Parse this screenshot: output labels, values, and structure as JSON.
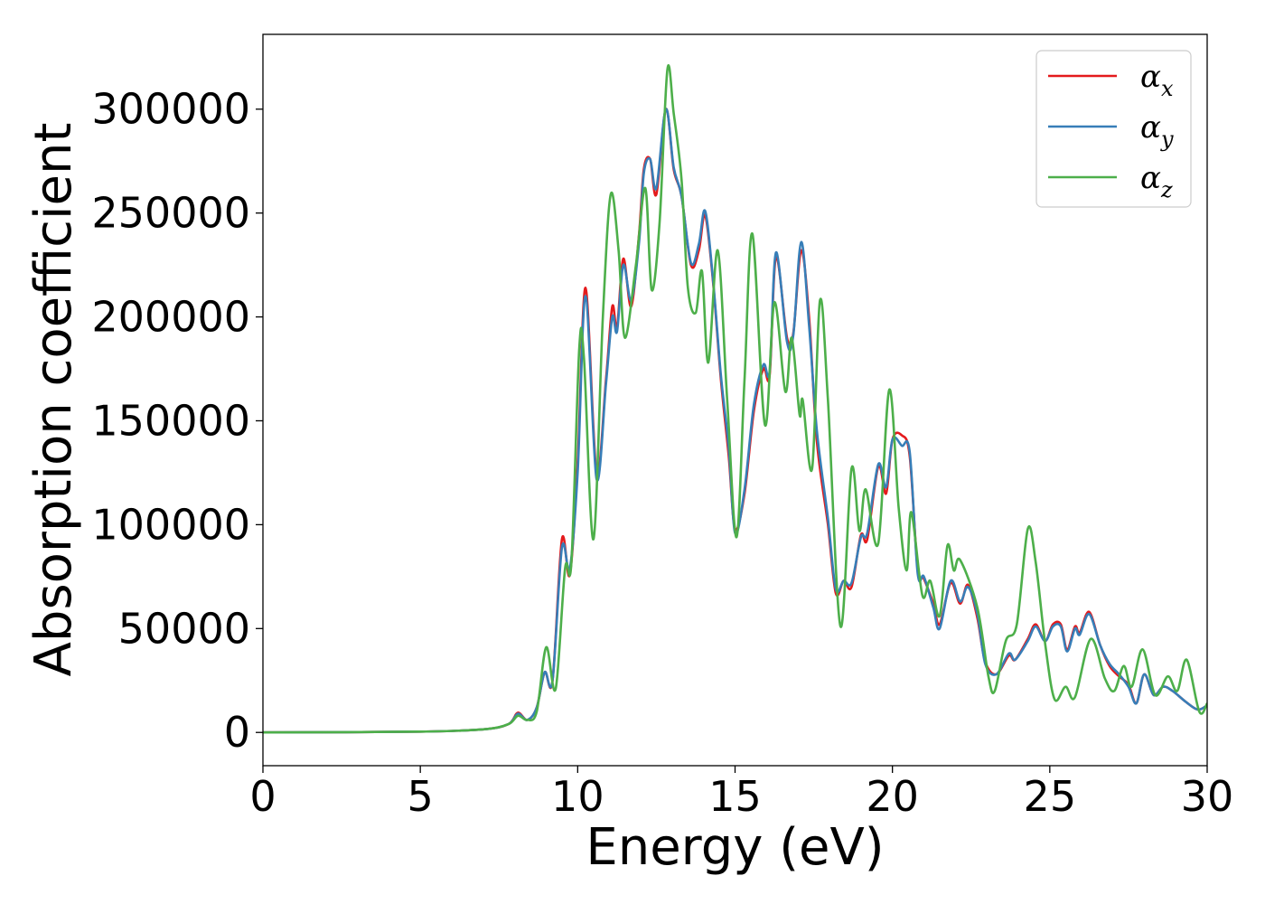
{
  "chart_data": {
    "type": "line",
    "xlabel": "Energy (eV)",
    "ylabel": "Absorption coefficient",
    "xlim": [
      0,
      30
    ],
    "ylim": [
      -16000,
      336000
    ],
    "xticks": [
      0,
      5,
      10,
      15,
      20,
      25,
      30
    ],
    "yticks": [
      0,
      50000,
      100000,
      150000,
      200000,
      250000,
      300000
    ],
    "grid": false,
    "legend_position": "top-right",
    "series": [
      {
        "name": "αx",
        "label_base": "α",
        "label_sub": "x",
        "color": "#e41a1c",
        "points": [
          [
            0,
            0
          ],
          [
            5,
            400
          ],
          [
            7,
            1500
          ],
          [
            7.8,
            4000
          ],
          [
            8.1,
            9500
          ],
          [
            8.4,
            6000
          ],
          [
            8.7,
            12000
          ],
          [
            8.95,
            29000
          ],
          [
            9.2,
            25000
          ],
          [
            9.5,
            93000
          ],
          [
            9.75,
            76000
          ],
          [
            10.0,
            130000
          ],
          [
            10.25,
            214000
          ],
          [
            10.6,
            125000
          ],
          [
            10.9,
            170000
          ],
          [
            11.1,
            205000
          ],
          [
            11.25,
            195000
          ],
          [
            11.45,
            228000
          ],
          [
            11.7,
            205000
          ],
          [
            11.95,
            240000
          ],
          [
            12.1,
            271000
          ],
          [
            12.3,
            276000
          ],
          [
            12.5,
            259000
          ],
          [
            12.8,
            300000
          ],
          [
            13.05,
            271000
          ],
          [
            13.3,
            258000
          ],
          [
            13.6,
            225000
          ],
          [
            13.85,
            232000
          ],
          [
            14.05,
            249000
          ],
          [
            14.3,
            217000
          ],
          [
            14.55,
            170000
          ],
          [
            14.8,
            133000
          ],
          [
            15.0,
            98000
          ],
          [
            15.3,
            115000
          ],
          [
            15.6,
            155000
          ],
          [
            15.9,
            175000
          ],
          [
            16.1,
            172000
          ],
          [
            16.3,
            229000
          ],
          [
            16.65,
            190000
          ],
          [
            16.85,
            192000
          ],
          [
            17.1,
            232000
          ],
          [
            17.35,
            200000
          ],
          [
            17.6,
            140000
          ],
          [
            17.95,
            100000
          ],
          [
            18.2,
            67000
          ],
          [
            18.45,
            73000
          ],
          [
            18.7,
            70000
          ],
          [
            19.0,
            95000
          ],
          [
            19.2,
            93000
          ],
          [
            19.55,
            128000
          ],
          [
            19.8,
            115000
          ],
          [
            20.0,
            141000
          ],
          [
            20.3,
            143000
          ],
          [
            20.55,
            133000
          ],
          [
            20.8,
            79000
          ],
          [
            21.0,
            74000
          ],
          [
            21.3,
            62000
          ],
          [
            21.5,
            52000
          ],
          [
            21.85,
            72000
          ],
          [
            22.15,
            62000
          ],
          [
            22.4,
            71000
          ],
          [
            22.7,
            55000
          ],
          [
            22.95,
            34000
          ],
          [
            23.3,
            28000
          ],
          [
            23.7,
            37000
          ],
          [
            23.9,
            35000
          ],
          [
            24.3,
            45000
          ],
          [
            24.55,
            52000
          ],
          [
            24.85,
            44000
          ],
          [
            25.1,
            52000
          ],
          [
            25.35,
            52000
          ],
          [
            25.55,
            40000
          ],
          [
            25.8,
            51000
          ],
          [
            25.95,
            48000
          ],
          [
            26.25,
            58000
          ],
          [
            26.6,
            42000
          ],
          [
            26.9,
            32000
          ],
          [
            27.2,
            27000
          ],
          [
            27.5,
            23000
          ],
          [
            27.75,
            14000
          ],
          [
            28.0,
            28000
          ],
          [
            28.3,
            18000
          ],
          [
            28.6,
            22000
          ],
          [
            28.9,
            20000
          ],
          [
            29.3,
            15000
          ],
          [
            29.7,
            11000
          ],
          [
            30,
            13000
          ]
        ]
      },
      {
        "name": "αy",
        "label_base": "α",
        "label_sub": "y",
        "color": "#377eb8",
        "points": [
          [
            0,
            0
          ],
          [
            5,
            400
          ],
          [
            7,
            1500
          ],
          [
            7.8,
            4000
          ],
          [
            8.1,
            9000
          ],
          [
            8.4,
            6000
          ],
          [
            8.7,
            12000
          ],
          [
            8.95,
            29000
          ],
          [
            9.2,
            25000
          ],
          [
            9.5,
            89000
          ],
          [
            9.75,
            79000
          ],
          [
            10.0,
            125000
          ],
          [
            10.25,
            210000
          ],
          [
            10.6,
            122000
          ],
          [
            10.9,
            168000
          ],
          [
            11.1,
            200000
          ],
          [
            11.25,
            193000
          ],
          [
            11.45,
            225000
          ],
          [
            11.7,
            208000
          ],
          [
            11.95,
            236000
          ],
          [
            12.1,
            269000
          ],
          [
            12.3,
            276000
          ],
          [
            12.5,
            262000
          ],
          [
            12.8,
            300000
          ],
          [
            13.05,
            272000
          ],
          [
            13.3,
            258000
          ],
          [
            13.6,
            226000
          ],
          [
            13.85,
            235000
          ],
          [
            14.05,
            251000
          ],
          [
            14.3,
            218000
          ],
          [
            14.55,
            172000
          ],
          [
            14.8,
            137000
          ],
          [
            15.0,
            96000
          ],
          [
            15.3,
            117000
          ],
          [
            15.6,
            158000
          ],
          [
            15.9,
            177000
          ],
          [
            16.1,
            174000
          ],
          [
            16.3,
            231000
          ],
          [
            16.65,
            188000
          ],
          [
            16.85,
            191000
          ],
          [
            17.1,
            236000
          ],
          [
            17.35,
            196000
          ],
          [
            17.6,
            145000
          ],
          [
            17.95,
            103000
          ],
          [
            18.2,
            69000
          ],
          [
            18.45,
            73000
          ],
          [
            18.7,
            72000
          ],
          [
            19.0,
            94000
          ],
          [
            19.2,
            96000
          ],
          [
            19.55,
            129000
          ],
          [
            19.8,
            118000
          ],
          [
            20.0,
            141000
          ],
          [
            20.3,
            138000
          ],
          [
            20.55,
            135000
          ],
          [
            20.8,
            77000
          ],
          [
            21.0,
            75000
          ],
          [
            21.3,
            60000
          ],
          [
            21.5,
            50000
          ],
          [
            21.85,
            73000
          ],
          [
            22.15,
            63000
          ],
          [
            22.4,
            70000
          ],
          [
            22.7,
            57000
          ],
          [
            22.95,
            33000
          ],
          [
            23.3,
            28000
          ],
          [
            23.7,
            38000
          ],
          [
            23.9,
            35000
          ],
          [
            24.3,
            44000
          ],
          [
            24.55,
            51000
          ],
          [
            24.85,
            44000
          ],
          [
            25.1,
            51000
          ],
          [
            25.35,
            51000
          ],
          [
            25.55,
            39000
          ],
          [
            25.8,
            50000
          ],
          [
            25.95,
            47000
          ],
          [
            26.25,
            57000
          ],
          [
            26.6,
            42000
          ],
          [
            26.9,
            33000
          ],
          [
            27.2,
            28000
          ],
          [
            27.5,
            22000
          ],
          [
            27.75,
            14000
          ],
          [
            28.0,
            28000
          ],
          [
            28.3,
            18000
          ],
          [
            28.6,
            22000
          ],
          [
            28.9,
            20000
          ],
          [
            29.3,
            15000
          ],
          [
            29.7,
            11000
          ],
          [
            30,
            13000
          ]
        ]
      },
      {
        "name": "αz",
        "label_base": "α",
        "label_sub": "z",
        "color": "#4daf4a",
        "points": [
          [
            0,
            0
          ],
          [
            5,
            400
          ],
          [
            7,
            1500
          ],
          [
            7.8,
            4000
          ],
          [
            8.1,
            8000
          ],
          [
            8.4,
            6000
          ],
          [
            8.7,
            10000
          ],
          [
            9.0,
            41000
          ],
          [
            9.3,
            21000
          ],
          [
            9.6,
            79000
          ],
          [
            9.8,
            82000
          ],
          [
            10.05,
            185000
          ],
          [
            10.2,
            180000
          ],
          [
            10.5,
            93000
          ],
          [
            10.8,
            200000
          ],
          [
            11.05,
            259000
          ],
          [
            11.3,
            232000
          ],
          [
            11.5,
            190000
          ],
          [
            11.85,
            225000
          ],
          [
            12.15,
            262000
          ],
          [
            12.35,
            213000
          ],
          [
            12.6,
            245000
          ],
          [
            12.85,
            319000
          ],
          [
            13.05,
            298000
          ],
          [
            13.3,
            266000
          ],
          [
            13.5,
            214000
          ],
          [
            13.75,
            202000
          ],
          [
            13.95,
            222000
          ],
          [
            14.15,
            178000
          ],
          [
            14.45,
            232000
          ],
          [
            14.75,
            160000
          ],
          [
            15.05,
            94000
          ],
          [
            15.3,
            170000
          ],
          [
            15.55,
            240000
          ],
          [
            15.95,
            148000
          ],
          [
            16.25,
            207000
          ],
          [
            16.6,
            164000
          ],
          [
            16.8,
            190000
          ],
          [
            17.05,
            153000
          ],
          [
            17.15,
            160000
          ],
          [
            17.45,
            127000
          ],
          [
            17.7,
            208000
          ],
          [
            17.95,
            160000
          ],
          [
            18.35,
            51000
          ],
          [
            18.7,
            127000
          ],
          [
            18.95,
            97000
          ],
          [
            19.15,
            117000
          ],
          [
            19.55,
            91000
          ],
          [
            19.9,
            165000
          ],
          [
            20.2,
            108000
          ],
          [
            20.45,
            78000
          ],
          [
            20.6,
            106000
          ],
          [
            20.95,
            66000
          ],
          [
            21.2,
            73000
          ],
          [
            21.5,
            56000
          ],
          [
            21.75,
            90000
          ],
          [
            21.95,
            78000
          ],
          [
            22.15,
            83000
          ],
          [
            22.7,
            60000
          ],
          [
            23.05,
            27000
          ],
          [
            23.25,
            20000
          ],
          [
            23.6,
            44000
          ],
          [
            23.95,
            52000
          ],
          [
            24.3,
            98000
          ],
          [
            24.55,
            82000
          ],
          [
            24.85,
            43000
          ],
          [
            25.15,
            16000
          ],
          [
            25.5,
            22000
          ],
          [
            25.8,
            17000
          ],
          [
            26.3,
            45000
          ],
          [
            26.75,
            26000
          ],
          [
            27.05,
            20000
          ],
          [
            27.35,
            32000
          ],
          [
            27.6,
            22000
          ],
          [
            27.95,
            40000
          ],
          [
            28.35,
            18000
          ],
          [
            28.75,
            27000
          ],
          [
            29.05,
            20000
          ],
          [
            29.35,
            35000
          ],
          [
            29.75,
            10000
          ],
          [
            30,
            14000
          ]
        ]
      }
    ]
  }
}
